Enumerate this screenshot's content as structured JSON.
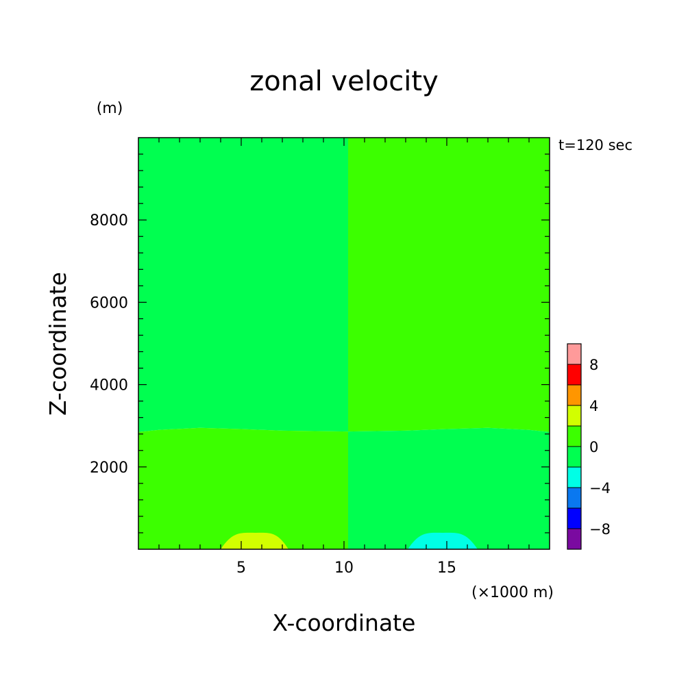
{
  "chart_data": {
    "type": "heatmap",
    "title": "zonal velocity",
    "xlabel": "X-coordinate",
    "ylabel": "Z-coordinate",
    "x_unit": "(×1000 m)",
    "y_unit": "(m)",
    "time_label": "t=120 sec",
    "xlim": [
      0,
      20
    ],
    "ylim": [
      0,
      10000
    ],
    "x_ticks": [
      5,
      10,
      15
    ],
    "x_tick_labels": [
      "5",
      "10",
      "15"
    ],
    "y_ticks": [
      2000,
      4000,
      6000,
      8000
    ],
    "y_tick_labels": [
      "2000",
      "4000",
      "6000",
      "8000"
    ],
    "x_minor_step": 1,
    "y_minor_step": 400,
    "colorbar": {
      "levels": [
        -10,
        -8,
        -6,
        -4,
        -2,
        0,
        2,
        4,
        6,
        8,
        10
      ],
      "colors": [
        "#7a0aa0",
        "#0000ff",
        "#0a78f0",
        "#00ffe6",
        "#00ff50",
        "#3cff00",
        "#d2ff00",
        "#ff9600",
        "#ff0000",
        "#ff9a9a"
      ],
      "tick_values": [
        -8,
        -4,
        0,
        4,
        8
      ],
      "tick_labels": [
        "−8",
        "−4",
        "0",
        "4",
        "8"
      ]
    },
    "regions": [
      {
        "name": "upper-left",
        "range": [
          -2,
          0
        ],
        "color": "#00ff50"
      },
      {
        "name": "upper-right",
        "range": [
          0,
          2
        ],
        "color": "#3cff00"
      },
      {
        "name": "lower-left",
        "range": [
          0,
          2
        ],
        "color": "#3cff00"
      },
      {
        "name": "lower-right",
        "range": [
          -2,
          0
        ],
        "color": "#00ff50"
      },
      {
        "name": "bottom-left-bump",
        "range": [
          2,
          4
        ],
        "color": "#d2ff00"
      },
      {
        "name": "bottom-right-bump",
        "range": [
          -4,
          -2
        ],
        "color": "#00ffe6"
      }
    ],
    "interface_height": [
      {
        "x": 0,
        "z": 2850
      },
      {
        "x": 1,
        "z": 2900
      },
      {
        "x": 3,
        "z": 2950
      },
      {
        "x": 5,
        "z": 2920
      },
      {
        "x": 7,
        "z": 2880
      },
      {
        "x": 10.2,
        "z": 2860
      },
      {
        "x": 13,
        "z": 2880
      },
      {
        "x": 15,
        "z": 2920
      },
      {
        "x": 17,
        "z": 2950
      },
      {
        "x": 19,
        "z": 2900
      },
      {
        "x": 20,
        "z": 2850
      }
    ],
    "divider_x": 10.2,
    "bumps": [
      {
        "x_start": 4.0,
        "x_peak": 5.7,
        "x_end": 7.3,
        "z_peak": 400
      },
      {
        "x_start": 13.1,
        "x_peak": 14.8,
        "x_end": 16.5,
        "z_peak": 400
      }
    ]
  }
}
